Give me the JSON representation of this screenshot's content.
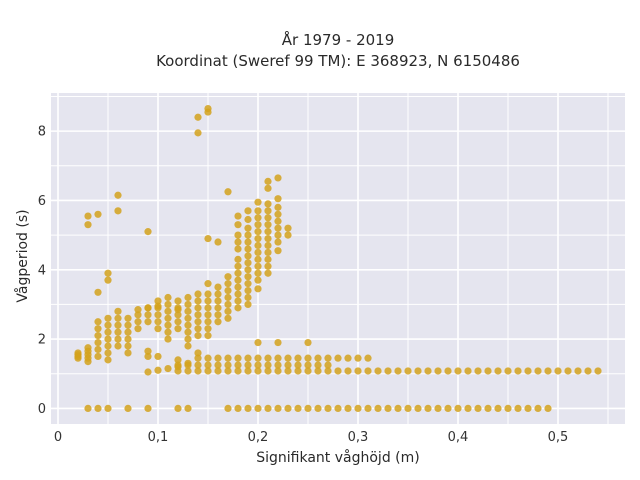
{
  "chart_data": {
    "type": "scatter",
    "title": "År 1979 - 2019",
    "subtitle": "Koordinat (Sweref 99 TM): E 368923, N 6150486",
    "xlabel": "Signifikant våghöjd (m)",
    "ylabel": "Vågperiod (s)",
    "xlim": [
      -0.007,
      0.567
    ],
    "ylim": [
      -0.45,
      9.1
    ],
    "x_ticks": [
      0,
      0.1,
      0.2,
      0.3,
      0.4,
      0.5
    ],
    "x_tick_labels": [
      "0",
      "0,1",
      "0,2",
      "0,3",
      "0,4",
      "0,5"
    ],
    "y_ticks": [
      0,
      2,
      4,
      6,
      8
    ],
    "y_tick_labels": [
      "0",
      "2",
      "4",
      "6",
      "8"
    ],
    "grid": true,
    "background": "#e5e5ef",
    "point_color": "#d4a21c",
    "series": [
      {
        "points": [
          [
            0.02,
            1.45
          ],
          [
            0.02,
            1.5
          ],
          [
            0.02,
            1.55
          ],
          [
            0.02,
            1.6
          ],
          [
            0.03,
            1.35
          ],
          [
            0.03,
            1.45
          ],
          [
            0.03,
            1.55
          ],
          [
            0.03,
            1.65
          ],
          [
            0.03,
            1.75
          ],
          [
            0.03,
            5.3
          ],
          [
            0.03,
            5.55
          ],
          [
            0.04,
            1.5
          ],
          [
            0.04,
            1.7
          ],
          [
            0.04,
            1.9
          ],
          [
            0.04,
            2.1
          ],
          [
            0.04,
            2.3
          ],
          [
            0.04,
            2.5
          ],
          [
            0.04,
            3.35
          ],
          [
            0.04,
            5.6
          ],
          [
            0.05,
            1.4
          ],
          [
            0.05,
            1.6
          ],
          [
            0.05,
            1.8
          ],
          [
            0.05,
            2.0
          ],
          [
            0.05,
            2.2
          ],
          [
            0.05,
            2.4
          ],
          [
            0.05,
            2.6
          ],
          [
            0.05,
            3.7
          ],
          [
            0.05,
            3.9
          ],
          [
            0.06,
            1.8
          ],
          [
            0.06,
            2.0
          ],
          [
            0.06,
            2.2
          ],
          [
            0.06,
            2.4
          ],
          [
            0.06,
            2.6
          ],
          [
            0.06,
            2.8
          ],
          [
            0.06,
            5.7
          ],
          [
            0.06,
            6.15
          ],
          [
            0.07,
            1.6
          ],
          [
            0.07,
            1.8
          ],
          [
            0.07,
            2.0
          ],
          [
            0.07,
            2.2
          ],
          [
            0.07,
            2.4
          ],
          [
            0.07,
            2.6
          ],
          [
            0.08,
            2.3
          ],
          [
            0.08,
            2.5
          ],
          [
            0.08,
            2.7
          ],
          [
            0.08,
            2.85
          ],
          [
            0.09,
            2.5
          ],
          [
            0.09,
            2.7
          ],
          [
            0.09,
            2.9
          ],
          [
            0.09,
            1.65
          ],
          [
            0.09,
            1.5
          ],
          [
            0.09,
            1.05
          ],
          [
            0.09,
            5.1
          ],
          [
            0.1,
            2.3
          ],
          [
            0.1,
            2.5
          ],
          [
            0.1,
            2.7
          ],
          [
            0.1,
            2.9
          ],
          [
            0.1,
            3.1
          ],
          [
            0.1,
            1.5
          ],
          [
            0.1,
            1.1
          ],
          [
            0.11,
            2.0
          ],
          [
            0.11,
            2.2
          ],
          [
            0.11,
            2.4
          ],
          [
            0.11,
            2.6
          ],
          [
            0.11,
            2.8
          ],
          [
            0.11,
            3.0
          ],
          [
            0.11,
            3.2
          ],
          [
            0.11,
            1.15
          ],
          [
            0.12,
            2.3
          ],
          [
            0.12,
            2.5
          ],
          [
            0.12,
            2.7
          ],
          [
            0.12,
            2.9
          ],
          [
            0.12,
            3.1
          ],
          [
            0.12,
            1.4
          ],
          [
            0.12,
            1.2
          ],
          [
            0.13,
            1.8
          ],
          [
            0.13,
            2.0
          ],
          [
            0.13,
            2.2
          ],
          [
            0.13,
            2.4
          ],
          [
            0.13,
            2.6
          ],
          [
            0.13,
            2.8
          ],
          [
            0.13,
            3.0
          ],
          [
            0.13,
            3.2
          ],
          [
            0.13,
            1.3
          ],
          [
            0.14,
            2.1
          ],
          [
            0.14,
            2.3
          ],
          [
            0.14,
            2.5
          ],
          [
            0.14,
            2.7
          ],
          [
            0.14,
            2.9
          ],
          [
            0.14,
            3.1
          ],
          [
            0.14,
            3.3
          ],
          [
            0.14,
            1.6
          ],
          [
            0.14,
            7.95
          ],
          [
            0.14,
            8.4
          ],
          [
            0.15,
            2.1
          ],
          [
            0.15,
            2.3
          ],
          [
            0.15,
            2.5
          ],
          [
            0.15,
            2.7
          ],
          [
            0.15,
            2.9
          ],
          [
            0.15,
            3.1
          ],
          [
            0.15,
            3.3
          ],
          [
            0.15,
            3.6
          ],
          [
            0.15,
            4.9
          ],
          [
            0.15,
            8.55
          ],
          [
            0.15,
            8.65
          ],
          [
            0.16,
            2.5
          ],
          [
            0.16,
            2.7
          ],
          [
            0.16,
            2.9
          ],
          [
            0.16,
            3.1
          ],
          [
            0.16,
            3.3
          ],
          [
            0.16,
            3.5
          ],
          [
            0.16,
            4.8
          ],
          [
            0.17,
            2.6
          ],
          [
            0.17,
            2.8
          ],
          [
            0.17,
            3.0
          ],
          [
            0.17,
            3.2
          ],
          [
            0.17,
            3.4
          ],
          [
            0.17,
            3.6
          ],
          [
            0.17,
            3.8
          ],
          [
            0.17,
            6.25
          ],
          [
            0.18,
            2.9
          ],
          [
            0.18,
            3.1
          ],
          [
            0.18,
            3.3
          ],
          [
            0.18,
            3.5
          ],
          [
            0.18,
            3.7
          ],
          [
            0.18,
            3.9
          ],
          [
            0.18,
            4.1
          ],
          [
            0.18,
            4.3
          ],
          [
            0.18,
            4.6
          ],
          [
            0.18,
            4.8
          ],
          [
            0.18,
            5.0
          ],
          [
            0.18,
            5.3
          ],
          [
            0.18,
            5.55
          ],
          [
            0.19,
            3.0
          ],
          [
            0.19,
            3.2
          ],
          [
            0.19,
            3.4
          ],
          [
            0.19,
            3.6
          ],
          [
            0.19,
            3.8
          ],
          [
            0.19,
            4.0
          ],
          [
            0.19,
            4.2
          ],
          [
            0.19,
            4.4
          ],
          [
            0.19,
            4.6
          ],
          [
            0.19,
            4.8
          ],
          [
            0.19,
            5.0
          ],
          [
            0.19,
            5.2
          ],
          [
            0.19,
            5.45
          ],
          [
            0.19,
            5.7
          ],
          [
            0.2,
            3.45
          ],
          [
            0.2,
            3.7
          ],
          [
            0.2,
            3.9
          ],
          [
            0.2,
            4.1
          ],
          [
            0.2,
            4.3
          ],
          [
            0.2,
            4.5
          ],
          [
            0.2,
            4.7
          ],
          [
            0.2,
            4.9
          ],
          [
            0.2,
            5.1
          ],
          [
            0.2,
            5.3
          ],
          [
            0.2,
            5.5
          ],
          [
            0.2,
            5.7
          ],
          [
            0.2,
            5.95
          ],
          [
            0.2,
            1.9
          ],
          [
            0.21,
            3.9
          ],
          [
            0.21,
            4.1
          ],
          [
            0.21,
            4.3
          ],
          [
            0.21,
            4.5
          ],
          [
            0.21,
            4.7
          ],
          [
            0.21,
            4.9
          ],
          [
            0.21,
            5.1
          ],
          [
            0.21,
            5.3
          ],
          [
            0.21,
            5.5
          ],
          [
            0.21,
            5.7
          ],
          [
            0.21,
            5.9
          ],
          [
            0.21,
            6.35
          ],
          [
            0.21,
            6.55
          ],
          [
            0.22,
            4.55
          ],
          [
            0.22,
            4.8
          ],
          [
            0.22,
            5.0
          ],
          [
            0.22,
            5.2
          ],
          [
            0.22,
            5.4
          ],
          [
            0.22,
            5.6
          ],
          [
            0.22,
            5.8
          ],
          [
            0.22,
            6.05
          ],
          [
            0.22,
            6.65
          ],
          [
            0.22,
            1.9
          ],
          [
            0.23,
            5.0
          ],
          [
            0.23,
            5.2
          ],
          [
            0.25,
            1.9
          ],
          [
            0.03,
            0
          ],
          [
            0.04,
            0
          ],
          [
            0.05,
            0
          ],
          [
            0.07,
            0
          ],
          [
            0.09,
            0
          ],
          [
            0.12,
            0
          ],
          [
            0.13,
            0
          ],
          [
            0.09,
            2.9
          ],
          [
            0.1,
            2.95
          ],
          [
            0.12,
            2.85
          ]
        ]
      }
    ],
    "bands": [
      {
        "y": 0,
        "x_from": 0.17,
        "x_to": 0.48,
        "step": 0.01
      },
      {
        "y": 1.08,
        "x_from": 0.12,
        "x_to": 0.54,
        "step": 0.01
      },
      {
        "y": 1.45,
        "x_from": 0.14,
        "x_to": 0.31,
        "step": 0.01
      },
      {
        "y": 1.25,
        "x_from": 0.12,
        "x_to": 0.27,
        "step": 0.01
      }
    ],
    "extra_points": [
      [
        0.49,
        0
      ]
    ]
  }
}
